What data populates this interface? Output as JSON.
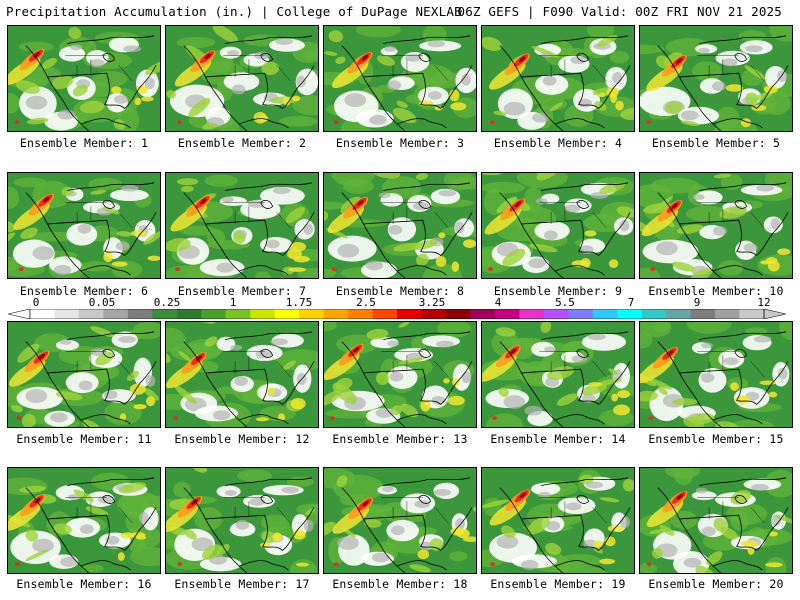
{
  "header": {
    "left_title": "Precipitation Accumulation (in.) | College of DuPage NEXLAB",
    "right_title": "06Z GEFS | F090 Valid: 00Z FRI NOV 21 2025"
  },
  "legend": {
    "tick_labels": [
      "0",
      "0.05",
      "0.25",
      "1",
      "1.75",
      "2.5",
      "3.25",
      "4",
      "5.5",
      "7",
      "9",
      "12"
    ],
    "colors": [
      "#ffffff",
      "#e6e6e6",
      "#c8c8c8",
      "#a5a5a5",
      "#7d7d7d",
      "#3d8b3d",
      "#2f7a2f",
      "#4aa02c",
      "#7ac029",
      "#c8e600",
      "#ffff00",
      "#ffd200",
      "#ffa500",
      "#ff7f00",
      "#ff4500",
      "#e60000",
      "#b40000",
      "#8b0000",
      "#a0005a",
      "#c8007d",
      "#e632c8",
      "#b450ff",
      "#7d7dff",
      "#32c8ff",
      "#00ffff",
      "#32c8c8",
      "#64a5a5",
      "#7d7d7d",
      "#a0a0a0",
      "#c8c8c8"
    ]
  },
  "map_colors": {
    "green": "#3c963c",
    "green_light": "#62b43a",
    "yellow_green": "#9ed23c",
    "yellow": "#f0e632",
    "orange": "#ff9a1e",
    "red": "#e8281e",
    "dark_red": "#8c0a0a",
    "white": "#ffffff",
    "gray": "#b4b4b4",
    "border": "#000000"
  },
  "members": [
    {
      "label": "Ensemble Member: 1"
    },
    {
      "label": "Ensemble Member: 2"
    },
    {
      "label": "Ensemble Member: 3"
    },
    {
      "label": "Ensemble Member: 4"
    },
    {
      "label": "Ensemble Member: 5"
    },
    {
      "label": "Ensemble Member: 6"
    },
    {
      "label": "Ensemble Member: 7"
    },
    {
      "label": "Ensemble Member: 8"
    },
    {
      "label": "Ensemble Member: 9"
    },
    {
      "label": "Ensemble Member: 10"
    },
    {
      "label": "Ensemble Member: 11"
    },
    {
      "label": "Ensemble Member: 12"
    },
    {
      "label": "Ensemble Member: 13"
    },
    {
      "label": "Ensemble Member: 14"
    },
    {
      "label": "Ensemble Member: 15"
    },
    {
      "label": "Ensemble Member: 16"
    },
    {
      "label": "Ensemble Member: 17"
    },
    {
      "label": "Ensemble Member: 18"
    },
    {
      "label": "Ensemble Member: 19"
    },
    {
      "label": "Ensemble Member: 20"
    }
  ]
}
